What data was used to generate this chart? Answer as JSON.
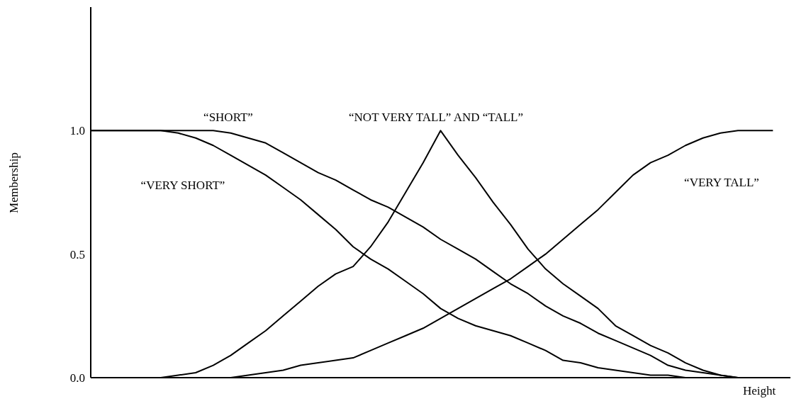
{
  "chart_data": {
    "type": "line",
    "xlabel": "Height",
    "ylabel": "Membership",
    "categories": [
      null,
      null,
      null,
      null,
      null,
      null,
      null,
      null,
      null,
      null,
      null,
      null,
      null,
      null,
      null,
      null,
      null,
      null,
      null,
      null,
      null,
      null,
      null,
      null,
      null,
      null,
      null,
      null,
      null,
      null,
      null,
      null,
      null,
      null,
      null,
      null,
      null,
      null,
      null,
      null,
      null
    ],
    "series": [
      {
        "name": "“SHORT”",
        "color": "#000000",
        "values": [
          1.0,
          1.0,
          1.0,
          1.0,
          1.0,
          1.0,
          1.0,
          1.0,
          0.99,
          0.97,
          0.95,
          0.91,
          0.87,
          0.83,
          0.8,
          0.76,
          0.72,
          0.69,
          0.65,
          0.61,
          0.56,
          0.52,
          0.48,
          0.43,
          0.38,
          0.34,
          0.29,
          0.25,
          0.22,
          0.18,
          0.15,
          0.12,
          0.09,
          0.05,
          0.03,
          0.02,
          0.01,
          0,
          null,
          null,
          null
        ]
      },
      {
        "name": "“VERY SHORT”",
        "color": "#000000",
        "values": [
          1.0,
          1.0,
          1.0,
          1.0,
          1.0,
          0.99,
          0.97,
          0.94,
          0.9,
          0.86,
          0.82,
          0.77,
          0.72,
          0.66,
          0.6,
          0.53,
          0.48,
          0.44,
          0.39,
          0.34,
          0.28,
          0.24,
          0.21,
          0.19,
          0.17,
          0.14,
          0.11,
          0.07,
          0.06,
          0.04,
          0.03,
          0.02,
          0.01,
          0.01,
          0,
          null,
          null,
          null,
          null,
          null,
          null
        ]
      },
      {
        "name": "“NOT VERY TALL” AND “TALL”",
        "color": "#000000",
        "values": [
          null,
          null,
          null,
          null,
          0,
          0.01,
          0.02,
          0.05,
          0.09,
          0.14,
          0.19,
          0.25,
          0.31,
          0.37,
          0.42,
          0.45,
          0.53,
          0.63,
          0.75,
          0.87,
          1.0,
          0.9,
          0.81,
          0.71,
          0.62,
          0.52,
          0.44,
          0.38,
          0.33,
          0.28,
          0.21,
          0.17,
          0.13,
          0.1,
          0.06,
          0.03,
          0.01,
          0,
          null,
          null,
          null
        ]
      },
      {
        "name": "“VERY TALL”",
        "color": "#000000",
        "values": [
          null,
          null,
          null,
          null,
          null,
          null,
          null,
          null,
          0,
          0.01,
          0.02,
          0.03,
          0.05,
          0.06,
          0.07,
          0.08,
          0.11,
          0.14,
          0.17,
          0.2,
          0.24,
          0.28,
          0.32,
          0.36,
          0.4,
          0.45,
          0.5,
          0.56,
          0.62,
          0.68,
          0.75,
          0.82,
          0.87,
          0.9,
          0.94,
          0.97,
          0.99,
          1.0,
          1.0,
          1.0,
          null
        ]
      }
    ],
    "ylim": [
      0,
      1.5
    ],
    "yticks": [
      {
        "value": 0,
        "label": "0.0"
      },
      {
        "value": 0.5,
        "label": "0.5"
      },
      {
        "value": 1,
        "label": "1.0"
      }
    ],
    "grid": false,
    "legend": false,
    "marker": "none",
    "line_style": "solid"
  }
}
